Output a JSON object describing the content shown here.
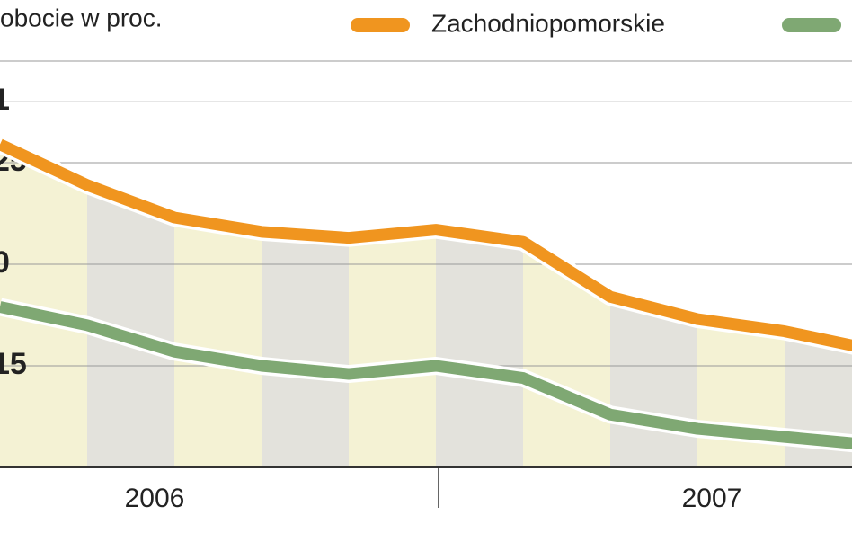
{
  "chart_data": {
    "type": "line",
    "title": "obocie w proc.",
    "categories": [
      null,
      null,
      null,
      null,
      null,
      null,
      null,
      null,
      null,
      null,
      null
    ],
    "series": [
      {
        "name": "Zachodniopomorskie",
        "color": "#f0951f",
        "values": [
          25.9,
          23.9,
          22.3,
          21.6,
          21.3,
          21.7,
          21.1,
          18.4,
          17.3,
          16.7,
          15.8
        ]
      },
      {
        "color": "#7fa873",
        "values": [
          17.9,
          17.0,
          15.7,
          15.0,
          14.6,
          15.0,
          14.4,
          12.6,
          11.9,
          11.5,
          11.1
        ]
      }
    ],
    "annotations": [
      "2006",
      "2007"
    ],
    "ylim": [
      10,
      30
    ],
    "yticks": [
      15,
      {
        "value": 20,
        "label": "0"
      },
      25,
      {
        "value": 28,
        "label": "1"
      }
    ],
    "grid": true
  }
}
